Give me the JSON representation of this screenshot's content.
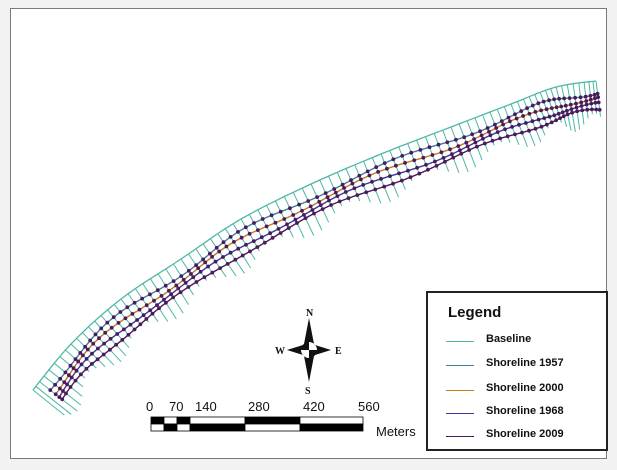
{
  "map": {
    "baseline_color": "#4db8a6",
    "shoreline_colors": {
      "1957": "#3f7f9f",
      "2000": "#c8781e",
      "1968": "#3a3a9a",
      "2009": "#4a1a5a"
    },
    "transect_color": "#4db8a6",
    "intersection_color": "#4a1a5a"
  },
  "legend": {
    "title": "Legend",
    "items": [
      {
        "label": "Baseline",
        "color": "#4db8a6"
      },
      {
        "label": "Shoreline 1957",
        "color": "#3f7f9f"
      },
      {
        "label": "Shoreline 2000",
        "color": "#c8781e"
      },
      {
        "label": "Shoreline 1968",
        "color": "#3a3a9a"
      },
      {
        "label": "Shoreline 2009",
        "color": "#4a1a5a"
      }
    ]
  },
  "compass": {
    "n": "N",
    "e": "E",
    "s": "S",
    "w": "W"
  },
  "scale_bar": {
    "ticks": [
      "0",
      "70",
      "140",
      "280",
      "420",
      "560"
    ],
    "unit": "Meters"
  }
}
